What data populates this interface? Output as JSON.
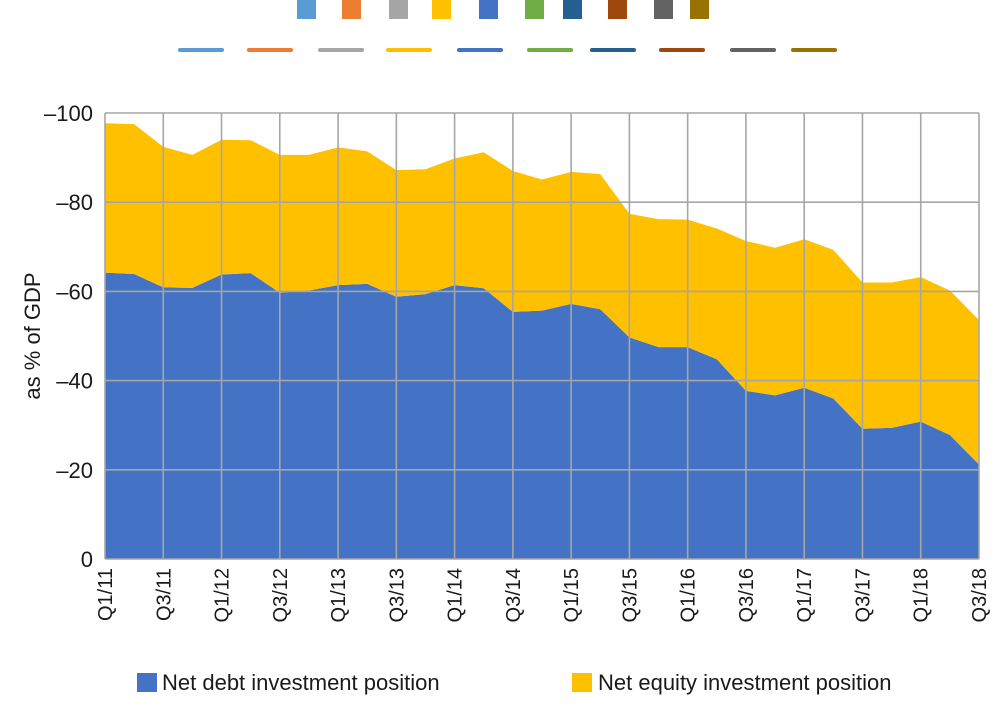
{
  "chart_data": {
    "type": "area",
    "stacked": true,
    "title": "",
    "xlabel": "",
    "ylabel": "as % of GDP",
    "ylim": [
      0,
      -100
    ],
    "y_ticks": [
      {
        "value": 0,
        "label": "0"
      },
      {
        "value": -20,
        "label": "–20"
      },
      {
        "value": -40,
        "label": "–40"
      },
      {
        "value": -60,
        "label": "–60"
      },
      {
        "value": -80,
        "label": "–80"
      },
      {
        "value": -100,
        "label": "–100"
      }
    ],
    "grid": true,
    "x": [
      "Q1/11",
      "Q2/11",
      "Q3/11",
      "Q4/11",
      "Q1/12",
      "Q2/12",
      "Q3/12",
      "Q4/12",
      "Q1/13",
      "Q2/13",
      "Q3/13",
      "Q4/13",
      "Q1/14",
      "Q2/14",
      "Q3/14",
      "Q4/14",
      "Q1/15",
      "Q2/15",
      "Q3/15",
      "Q4/15",
      "Q1/16",
      "Q2/16",
      "Q3/16",
      "Q4/16",
      "Q1/17",
      "Q2/17",
      "Q3/17",
      "Q4/17",
      "Q1/18",
      "Q2/18",
      "Q3/18"
    ],
    "x_tick_labels": [
      "Q1/11",
      "Q3/11",
      "Q1/12",
      "Q3/12",
      "Q1/13",
      "Q3/13",
      "Q1/14",
      "Q3/14",
      "Q1/15",
      "Q3/15",
      "Q1/16",
      "Q3/16",
      "Q1/17",
      "Q3/17",
      "Q1/18",
      "Q3/18"
    ],
    "series": [
      {
        "name": "Net debt investment position",
        "color": "#4472C4",
        "values": [
          -64.2,
          -63.9,
          -60.9,
          -60.8,
          -63.8,
          -64.1,
          -59.7,
          -60.2,
          -61.4,
          -61.7,
          -58.8,
          -59.4,
          -61.4,
          -60.7,
          -55.4,
          -55.7,
          -57.2,
          -56.0,
          -49.7,
          -47.5,
          -47.5,
          -44.8,
          -37.7,
          -36.7,
          -38.4,
          -36.0,
          -29.2,
          -29.4,
          -30.8,
          -27.8,
          -21.2
        ]
      },
      {
        "name": "Net equity investment position",
        "color": "#FFC000",
        "values": [
          -33.5,
          -33.6,
          -31.5,
          -29.8,
          -30.2,
          -29.8,
          -30.9,
          -30.4,
          -30.9,
          -29.7,
          -28.4,
          -28.0,
          -28.4,
          -30.5,
          -31.6,
          -29.4,
          -29.6,
          -30.3,
          -27.7,
          -28.7,
          -28.6,
          -29.3,
          -33.6,
          -33.1,
          -33.3,
          -33.3,
          -32.8,
          -32.6,
          -32.4,
          -32.4,
          -32.4
        ]
      }
    ],
    "legend": {
      "placement": "bottom",
      "entries": [
        "Net debt investment position",
        "Net equity investment position"
      ]
    },
    "color_swatches_top": [
      "#5B9BD5",
      "#ED7D31",
      "#A5A5A5",
      "#FFC000",
      "#4472C4",
      "#70AD47",
      "#255E91",
      "#9E480E",
      "#636363",
      "#997300"
    ],
    "color_lines_top": [
      "#5B9BD5",
      "#ED7D31",
      "#A5A5A5",
      "#FFC000",
      "#4472C4",
      "#70AD47",
      "#255E91",
      "#9E480E",
      "#636363",
      "#997300"
    ],
    "grid_color": "#A6A6A6"
  }
}
